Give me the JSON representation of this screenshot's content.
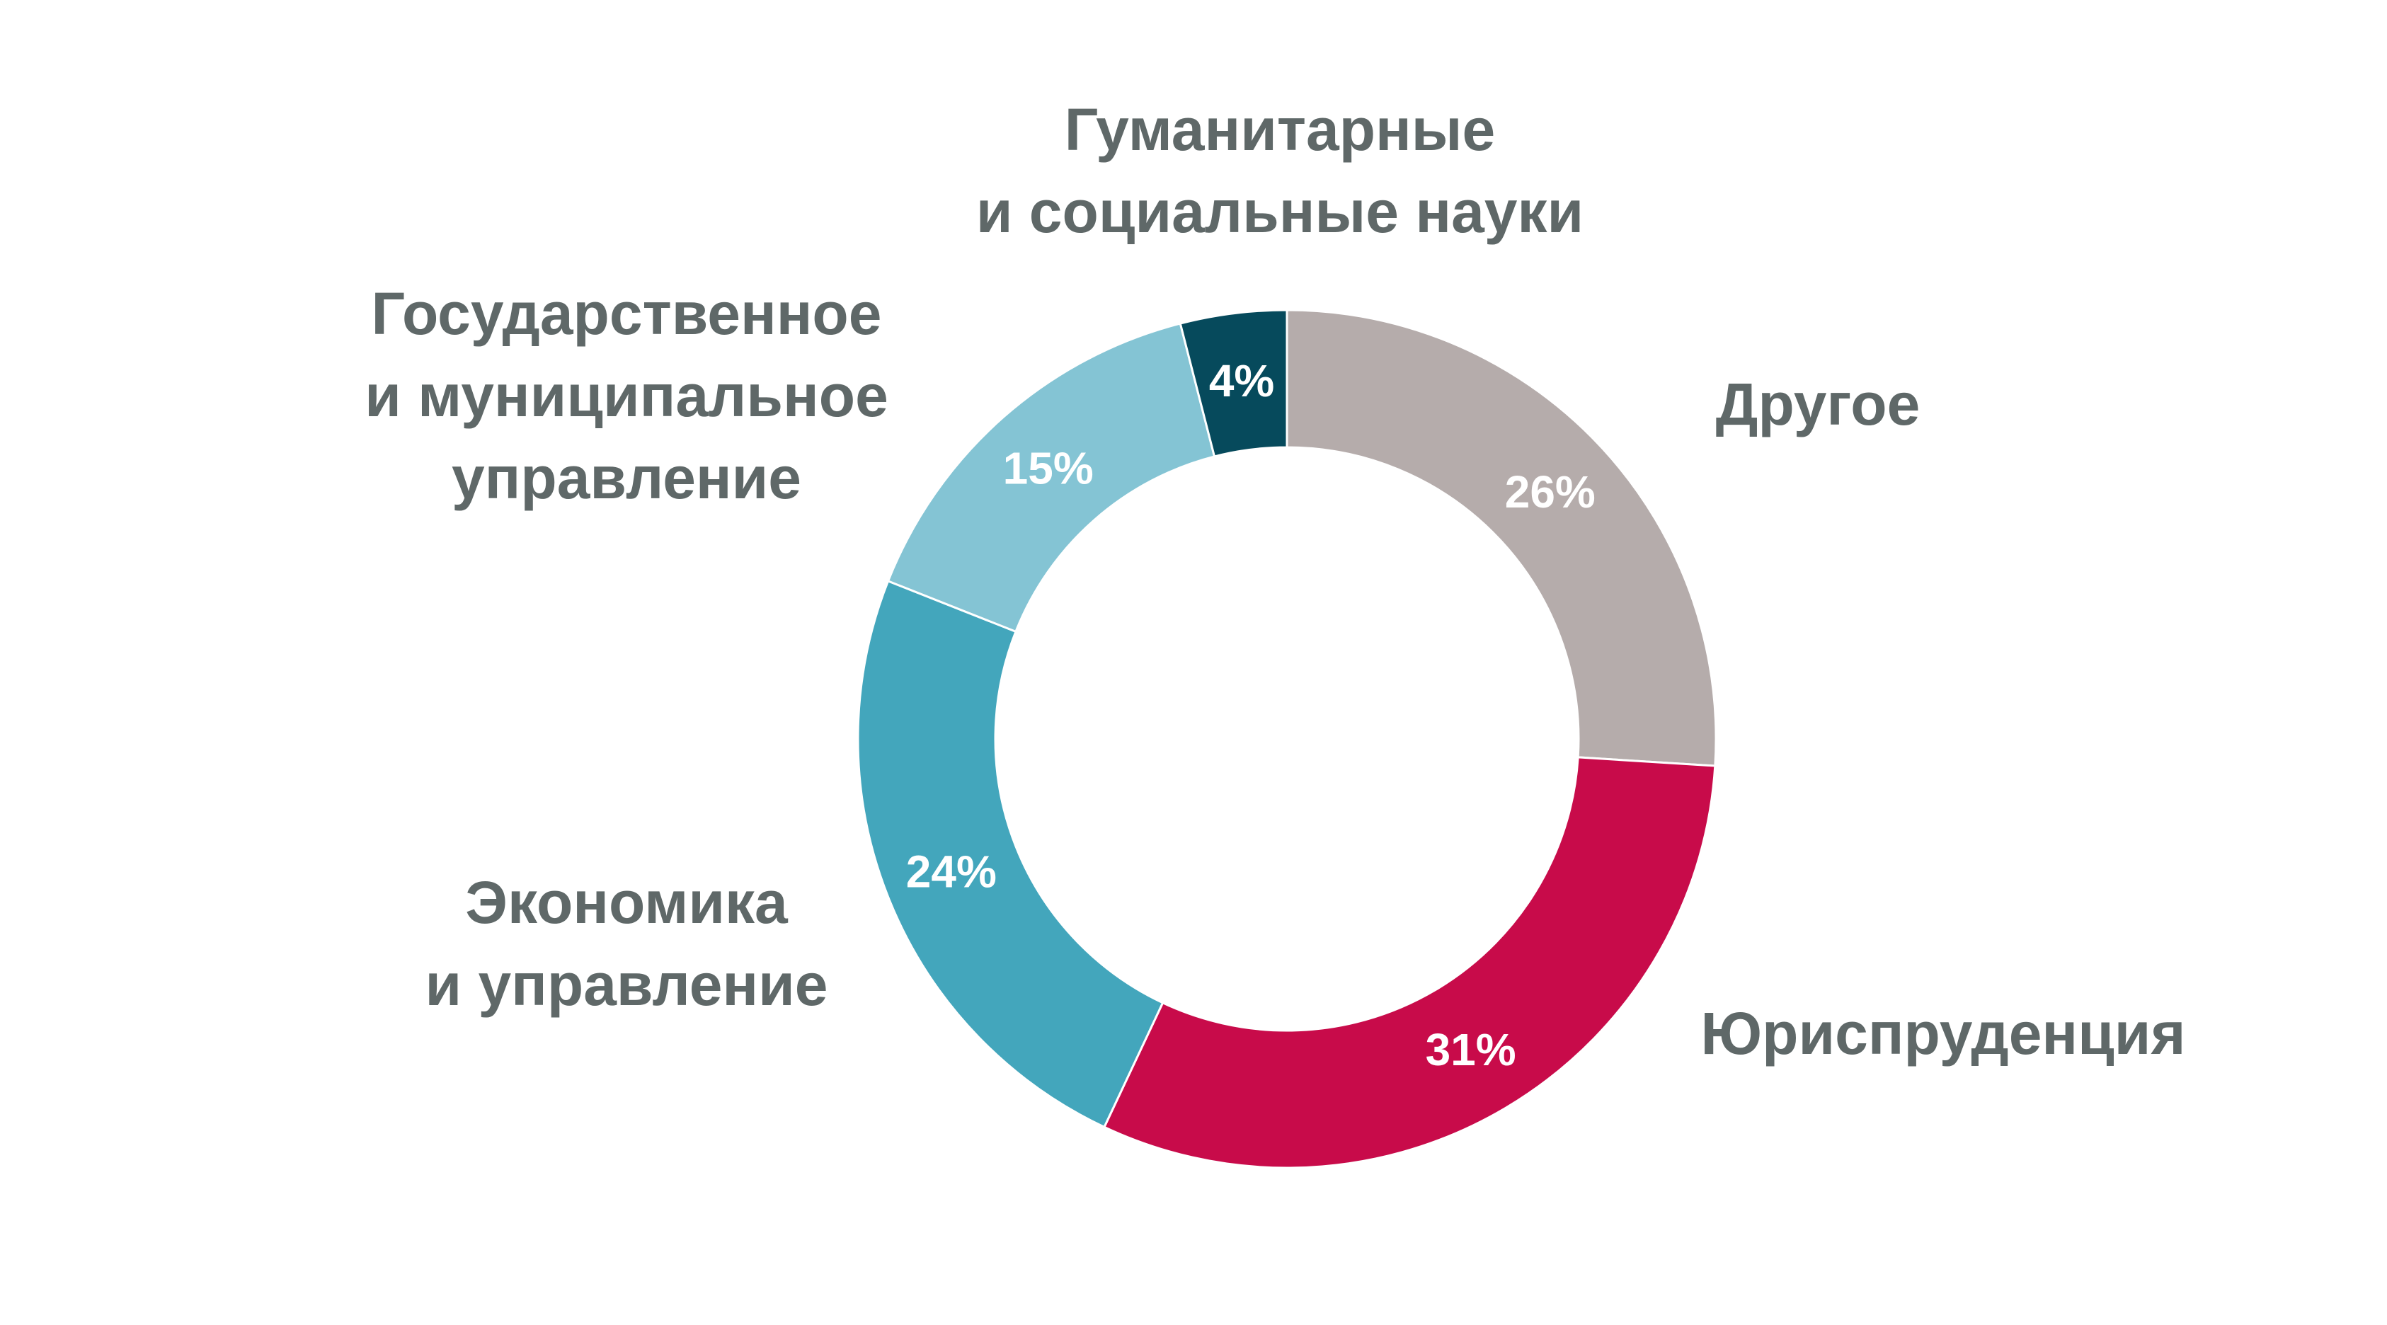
{
  "chart_data": {
    "type": "pie",
    "title": "",
    "start_angle_deg": 0,
    "direction": "clockwise",
    "slices": [
      {
        "label": "Другое",
        "value": 26,
        "value_label": "26%",
        "color": "#b5acab"
      },
      {
        "label": "Юриспруденция",
        "value": 31,
        "value_label": "31%",
        "color": "#c80b4a"
      },
      {
        "label": "Экономика\nи управление",
        "value": 24,
        "value_label": "24%",
        "color": "#43a6bc"
      },
      {
        "label": "Государственное\nи муниципальное\nуправление",
        "value": 15,
        "value_label": "15%",
        "color": "#84c4d4"
      },
      {
        "label": "Гуманитарные\nи социальные науки",
        "value": 4,
        "value_label": "4%",
        "color": "#064a5c"
      }
    ]
  }
}
